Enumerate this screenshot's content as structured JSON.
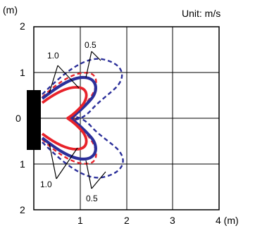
{
  "units": {
    "y_unit": "(m)",
    "x_unit": "4 (m)",
    "measure": "Unit: m/s"
  },
  "y_ticks": [
    "2",
    "1",
    "0",
    "1",
    "2"
  ],
  "x_ticks": [
    "1",
    "2",
    "3"
  ],
  "annotations": {
    "upper_inner": "1.0",
    "upper_outer": "0.5",
    "lower_inner": "1.0",
    "lower_outer": "0.5"
  },
  "colors": {
    "blue": "#2b2f9a",
    "red": "#e8222a",
    "grid": "#000000",
    "source": "#000000"
  }
}
